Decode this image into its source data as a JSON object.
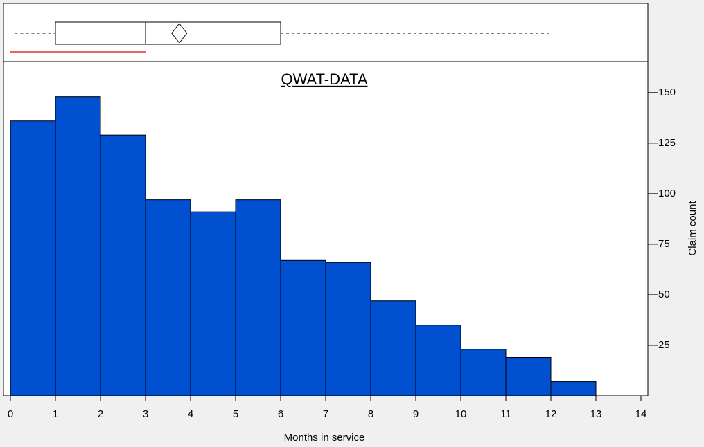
{
  "chart_data": {
    "type": "histogram",
    "title": "QWAT-DATA",
    "x_label": "Months in service",
    "y_label": "Claim count",
    "bins": [
      0,
      1,
      2,
      3,
      4,
      5,
      6,
      7,
      8,
      9,
      10,
      11,
      12,
      13
    ],
    "values": [
      136,
      148,
      129,
      97,
      91,
      97,
      67,
      66,
      47,
      35,
      23,
      19,
      7
    ],
    "color": "#0050d0",
    "xlim": [
      0,
      14
    ],
    "xticks": [
      0,
      1,
      2,
      3,
      4,
      5,
      6,
      7,
      8,
      9,
      10,
      11,
      12,
      13,
      14
    ],
    "ylim": [
      0,
      165
    ],
    "yticks": [
      25,
      50,
      75,
      100,
      125,
      150
    ],
    "boxplot": {
      "whisker_low": 0.1,
      "q1": 1,
      "median": 3,
      "mean": 3.75,
      "q3": 6,
      "whisker_high": 12,
      "interval": [
        0,
        3
      ]
    }
  }
}
